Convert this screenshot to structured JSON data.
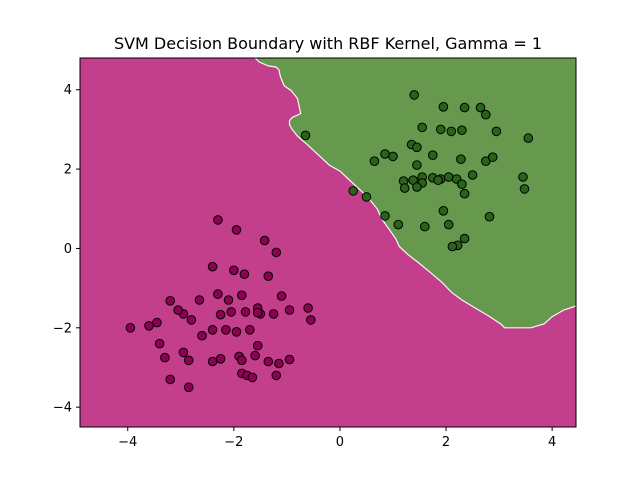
{
  "chart_data": {
    "type": "scatter",
    "title": "SVM Decision Boundary with RBF Kernel, Gamma = 1",
    "xlabel": "",
    "ylabel": "",
    "xlim": [
      -4.9,
      4.45
    ],
    "ylim": [
      -4.5,
      4.8
    ],
    "x_ticks": [
      -4,
      -2,
      0,
      2,
      4
    ],
    "y_ticks": [
      -4,
      -2,
      0,
      2,
      4
    ],
    "x_tick_labels": [
      "−4",
      "−2",
      "0",
      "2",
      "4"
    ],
    "y_tick_labels": [
      "−4",
      "−2",
      "0",
      "2",
      "4"
    ],
    "grid": false,
    "colors": {
      "region_class_0": "#c33f8c",
      "region_class_1": "#66994d",
      "points_class_0": "#8e0152",
      "points_class_1": "#276419",
      "boundary": "#f7f7f7",
      "point_edge": "#000000"
    },
    "decision_boundary": [
      [
        -1.6,
        4.8
      ],
      [
        -1.52,
        4.7
      ],
      [
        -1.35,
        4.6
      ],
      [
        -1.2,
        4.57
      ],
      [
        -1.15,
        4.5
      ],
      [
        -1.12,
        4.32
      ],
      [
        -1.05,
        4.1
      ],
      [
        -0.92,
        3.98
      ],
      [
        -0.8,
        3.78
      ],
      [
        -0.74,
        3.4
      ],
      [
        -0.9,
        3.3
      ],
      [
        -0.95,
        3.22
      ],
      [
        -0.95,
        3.12
      ],
      [
        -0.9,
        3.0
      ],
      [
        -0.8,
        2.83
      ],
      [
        -0.6,
        2.6
      ],
      [
        -0.4,
        2.35
      ],
      [
        -0.2,
        2.1
      ],
      [
        0.0,
        1.95
      ],
      [
        0.2,
        1.7
      ],
      [
        0.4,
        1.45
      ],
      [
        0.55,
        1.25
      ],
      [
        0.7,
        1.0
      ],
      [
        0.8,
        0.72
      ],
      [
        0.92,
        0.5
      ],
      [
        1.05,
        0.25
      ],
      [
        1.12,
        0.05
      ],
      [
        1.28,
        -0.15
      ],
      [
        1.5,
        -0.38
      ],
      [
        1.7,
        -0.6
      ],
      [
        1.92,
        -0.85
      ],
      [
        2.1,
        -1.1
      ],
      [
        2.3,
        -1.3
      ],
      [
        2.55,
        -1.5
      ],
      [
        2.8,
        -1.7
      ],
      [
        3.05,
        -1.92
      ],
      [
        3.1,
        -2.0
      ],
      [
        3.6,
        -2.0
      ],
      [
        3.85,
        -1.9
      ],
      [
        4.0,
        -1.72
      ],
      [
        4.22,
        -1.55
      ],
      [
        4.45,
        -1.45
      ]
    ],
    "series": [
      {
        "class": 0,
        "points": [
          [
            -2.3,
            0.72
          ],
          [
            -1.95,
            0.47
          ],
          [
            -1.42,
            0.2
          ],
          [
            -1.2,
            -0.1
          ],
          [
            -2.4,
            -0.46
          ],
          [
            -2.0,
            -0.55
          ],
          [
            -1.8,
            -0.65
          ],
          [
            -1.35,
            -0.7
          ],
          [
            -1.1,
            -1.2
          ],
          [
            -2.3,
            -1.15
          ],
          [
            -2.1,
            -1.3
          ],
          [
            -1.85,
            -1.18
          ],
          [
            -1.55,
            -1.5
          ],
          [
            -1.5,
            -1.65
          ],
          [
            -1.25,
            -1.65
          ],
          [
            -0.95,
            -1.55
          ],
          [
            -0.6,
            -1.5
          ],
          [
            -0.55,
            -1.8
          ],
          [
            -2.65,
            -1.3
          ],
          [
            -2.95,
            -1.65
          ],
          [
            -3.2,
            -1.32
          ],
          [
            -3.05,
            -1.55
          ],
          [
            -2.8,
            -1.8
          ],
          [
            -3.45,
            -1.87
          ],
          [
            -3.6,
            -1.95
          ],
          [
            -3.95,
            -2.0
          ],
          [
            -3.4,
            -2.4
          ],
          [
            -2.6,
            -2.2
          ],
          [
            -2.4,
            -2.05
          ],
          [
            -2.15,
            -2.05
          ],
          [
            -1.95,
            -2.1
          ],
          [
            -1.7,
            -2.05
          ],
          [
            -1.55,
            -2.45
          ],
          [
            -2.25,
            -2.78
          ],
          [
            -2.4,
            -2.85
          ],
          [
            -1.9,
            -2.72
          ],
          [
            -1.6,
            -2.7
          ],
          [
            -1.85,
            -2.82
          ],
          [
            -1.35,
            -2.85
          ],
          [
            -1.15,
            -2.9
          ],
          [
            -0.95,
            -2.8
          ],
          [
            -2.95,
            -2.62
          ],
          [
            -3.3,
            -2.75
          ],
          [
            -2.85,
            -2.82
          ],
          [
            -1.85,
            -3.15
          ],
          [
            -1.75,
            -3.2
          ],
          [
            -1.65,
            -3.25
          ],
          [
            -1.2,
            -3.2
          ],
          [
            -3.2,
            -3.3
          ],
          [
            -2.85,
            -3.5
          ],
          [
            -2.05,
            -1.6
          ],
          [
            -1.78,
            -1.6
          ],
          [
            -1.55,
            -1.62
          ],
          [
            -2.25,
            -1.67
          ]
        ]
      },
      {
        "class": 1,
        "points": [
          [
            1.4,
            3.87
          ],
          [
            1.95,
            3.57
          ],
          [
            2.35,
            3.55
          ],
          [
            2.65,
            3.55
          ],
          [
            2.75,
            3.37
          ],
          [
            2.95,
            2.95
          ],
          [
            3.55,
            2.78
          ],
          [
            1.55,
            3.05
          ],
          [
            1.35,
            2.62
          ],
          [
            1.45,
            2.55
          ],
          [
            1.9,
            3.0
          ],
          [
            2.1,
            2.95
          ],
          [
            2.3,
            2.98
          ],
          [
            2.5,
            1.85
          ],
          [
            1.75,
            2.35
          ],
          [
            2.28,
            2.25
          ],
          [
            2.75,
            2.2
          ],
          [
            2.88,
            2.3
          ],
          [
            0.65,
            2.2
          ],
          [
            0.85,
            2.38
          ],
          [
            1.0,
            2.32
          ],
          [
            1.45,
            2.1
          ],
          [
            1.2,
            1.7
          ],
          [
            1.38,
            1.72
          ],
          [
            1.55,
            1.8
          ],
          [
            1.75,
            1.78
          ],
          [
            1.9,
            1.75
          ],
          [
            2.05,
            1.8
          ],
          [
            2.2,
            1.75
          ],
          [
            1.55,
            1.65
          ],
          [
            1.85,
            1.72
          ],
          [
            1.22,
            1.52
          ],
          [
            1.45,
            1.55
          ],
          [
            2.3,
            1.62
          ],
          [
            2.35,
            1.38
          ],
          [
            3.45,
            1.8
          ],
          [
            3.48,
            1.5
          ],
          [
            -0.65,
            2.85
          ],
          [
            0.25,
            1.45
          ],
          [
            0.5,
            1.3
          ],
          [
            0.85,
            0.82
          ],
          [
            1.1,
            0.6
          ],
          [
            1.6,
            0.55
          ],
          [
            1.95,
            0.95
          ],
          [
            2.05,
            0.6
          ],
          [
            2.82,
            0.8
          ],
          [
            2.35,
            0.25
          ],
          [
            2.22,
            0.08
          ],
          [
            2.12,
            0.05
          ]
        ]
      }
    ]
  }
}
